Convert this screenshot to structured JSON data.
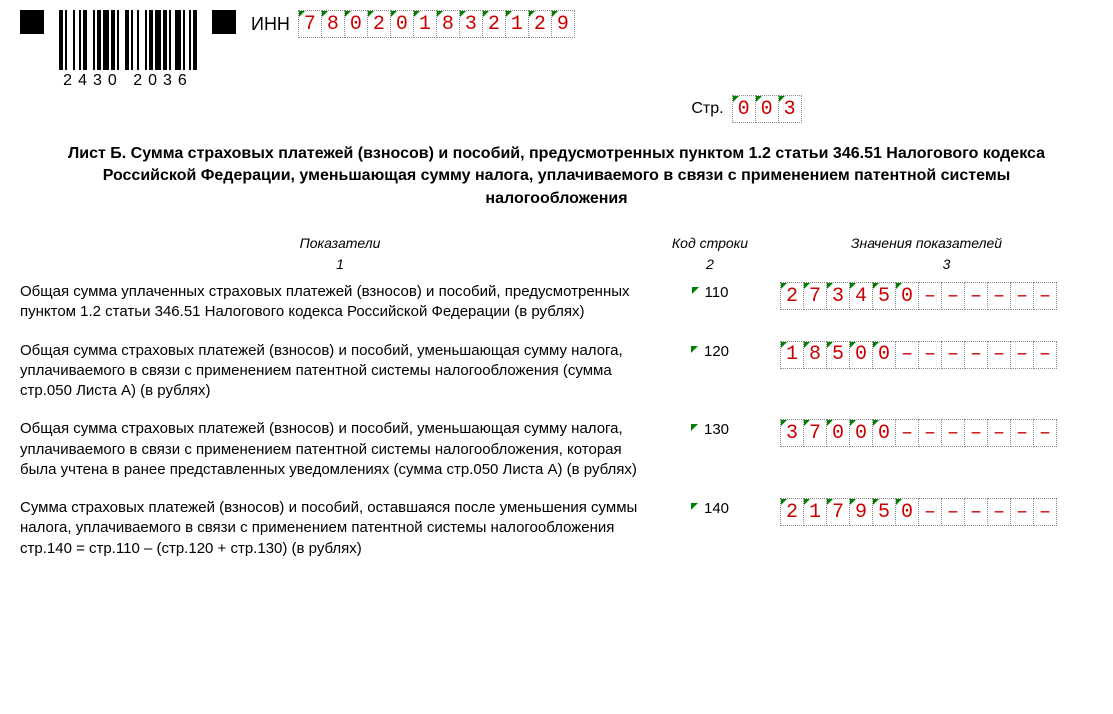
{
  "header": {
    "barcode_number": "2430 2036",
    "inn_label": "ИНН",
    "inn_value": "780201832129",
    "page_label": "Стр.",
    "page_value": "003"
  },
  "title": "Лист Б. Сумма страховых платежей (взносов) и пособий, предусмотренных пунктом 1.2 статьи 346.51 Налогового кодекса Российской Федерации, уменьшающая сумму налога, уплачиваемого в связи с применением патентной системы налогообложения",
  "columns": {
    "header1": "Показатели",
    "header2": "Код строки",
    "header3": "Значения показателей",
    "num1": "1",
    "num2": "2",
    "num3": "3"
  },
  "rows": [
    {
      "label": "Общая сумма уплаченных страховых платежей (взносов) и пособий, предусмотренных пунктом 1.2 статьи 346.51 Налогового кодекса Российской Федерации (в рублях)",
      "code": "110",
      "value": "273450",
      "total_cells": 12
    },
    {
      "label": "Общая сумма страховых платежей (взносов) и пособий, уменьшающая сумму налога, уплачиваемого в связи с применением патентной системы налогообложения (сумма стр.050 Листа А) (в рублях)",
      "code": "120",
      "value": "18500",
      "total_cells": 12
    },
    {
      "label": "Общая сумма страховых платежей (взносов) и пособий, уменьшающая сумму налога, уплачиваемого в связи с применением патентной системы налогообложения, которая была учтена в ранее представленных уведомлениях (сумма стр.050 Листа А) (в рублях)",
      "code": "130",
      "value": "37000",
      "total_cells": 12
    },
    {
      "label": "Сумма страховых платежей (взносов) и пособий, оставшаяся после уменьшения суммы налога, уплачиваемого в связи с применением патентной системы налогообложения стр.140 = стр.110 – (стр.120 + стр.130) (в рублях)",
      "code": "140",
      "value": "217950",
      "total_cells": 12
    }
  ],
  "style": {
    "digit_color": "#cc0000",
    "tick_color": "#008000",
    "cell_border": "#888888",
    "background": "#ffffff",
    "text_color": "#000000",
    "dash_char": "–"
  },
  "barcode_widths": [
    2,
    1,
    1,
    3,
    1,
    2,
    1,
    1,
    2,
    3,
    1,
    1,
    2,
    1,
    3,
    1,
    2,
    1,
    1,
    3,
    2,
    1,
    1,
    2,
    1,
    3,
    1,
    1,
    2,
    1,
    3,
    1,
    2,
    1,
    1,
    2,
    3,
    1,
    1,
    2,
    1,
    1,
    2
  ]
}
